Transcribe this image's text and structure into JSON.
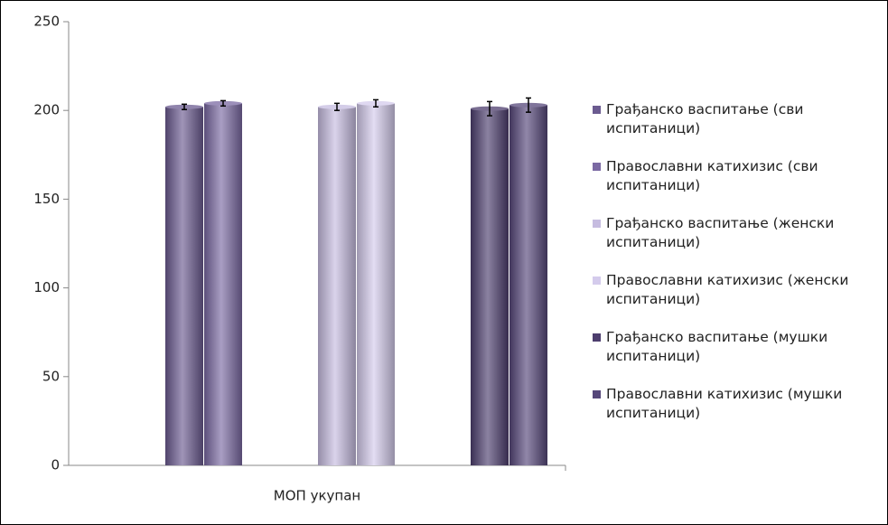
{
  "chart_data": {
    "type": "bar",
    "categories": [
      "МОП укупан"
    ],
    "series": [
      {
        "name": "Грађанско васпитање (сви испитаници)",
        "color": "#6b5b90",
        "values": [
          202
        ],
        "errors": [
          1.5
        ]
      },
      {
        "name": "Православни катихизис (сви испитаници)",
        "color": "#7b69a3",
        "values": [
          204
        ],
        "errors": [
          1.5
        ]
      },
      {
        "name": "Грађанско васпитање (женски испитаници)",
        "color": "#c6bce0",
        "values": [
          202
        ],
        "errors": [
          2
        ]
      },
      {
        "name": "Православни катихизис (женски испитаници)",
        "color": "#d4cbec",
        "values": [
          204
        ],
        "errors": [
          2
        ]
      },
      {
        "name": "Грађанско васпитање (мушки испитаници)",
        "color": "#4d3e6e",
        "values": [
          201
        ],
        "errors": [
          4
        ]
      },
      {
        "name": "Православни катихизис (мушки испитаници)",
        "color": "#56477a",
        "values": [
          203
        ],
        "errors": [
          4
        ]
      }
    ],
    "ylim": [
      0,
      250
    ],
    "yticks": [
      0,
      50,
      100,
      150,
      200,
      250
    ],
    "grid": false,
    "legend": "right"
  }
}
